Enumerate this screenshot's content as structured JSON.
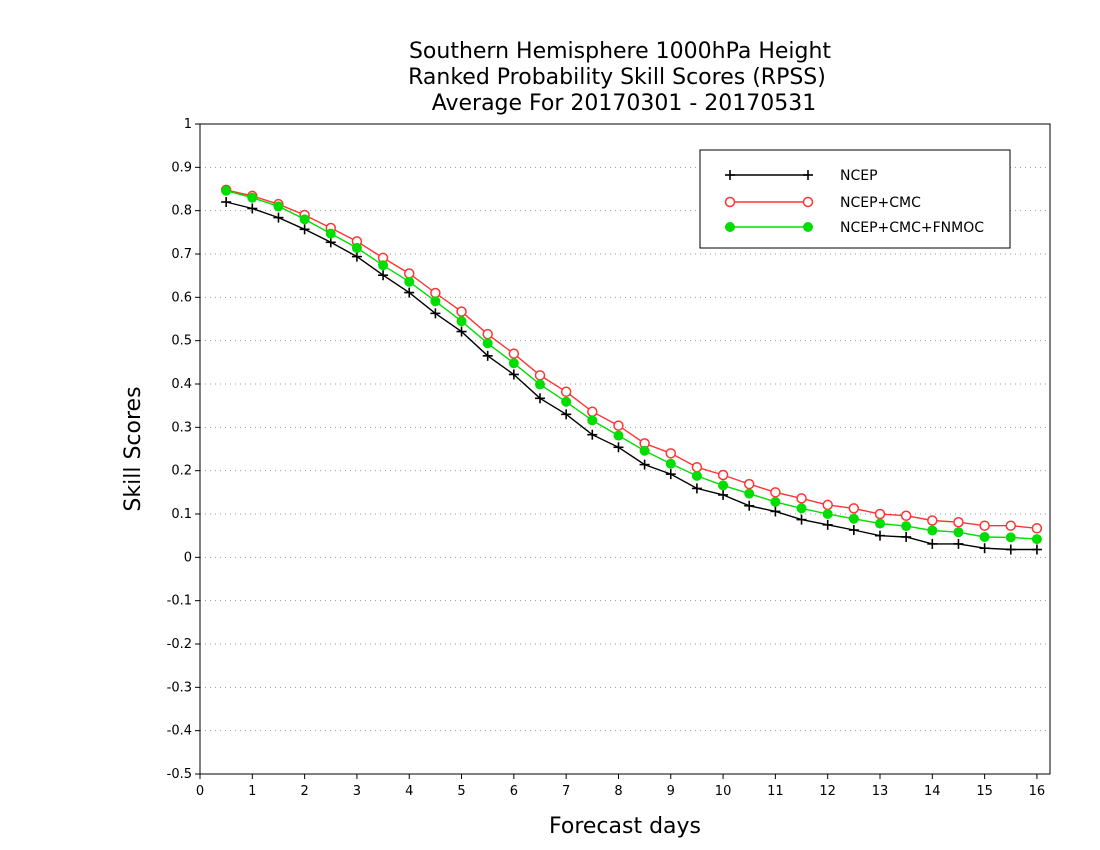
{
  "chart_data": {
    "type": "line",
    "title_lines": [
      "Southern Hemisphere 1000hPa Height",
      "Ranked Probability Skill Scores (RPSS)",
      "Average For 20170301 - 20170531"
    ],
    "xlabel": "Forecast days",
    "ylabel": "Skill Scores",
    "xlim": [
      0,
      16.25
    ],
    "ylim": [
      -0.5,
      1
    ],
    "xticks": [
      0,
      1,
      2,
      3,
      4,
      5,
      6,
      7,
      8,
      9,
      10,
      11,
      12,
      13,
      14,
      15,
      16
    ],
    "yticks": [
      -0.5,
      -0.4,
      -0.3,
      -0.2,
      -0.1,
      0,
      0.1,
      0.2,
      0.3,
      0.4,
      0.5,
      0.6,
      0.7,
      0.8,
      0.9,
      1
    ],
    "ytick_labels": [
      "-0.5",
      "-0.4",
      "-0.3",
      "-0.2",
      "-0.1",
      "0",
      "0.1",
      "0.2",
      "0.3",
      "0.4",
      "0.5",
      "0.6",
      "0.7",
      "0.8",
      "0.9",
      "1"
    ],
    "grid": "horizontal dotted",
    "legend_position": "top-right",
    "x": [
      0.5,
      1,
      1.5,
      2,
      2.5,
      3,
      3.5,
      4,
      4.5,
      5,
      5.5,
      6,
      6.5,
      7,
      7.5,
      8,
      8.5,
      9,
      9.5,
      10,
      10.5,
      11,
      11.5,
      12,
      12.5,
      13,
      13.5,
      14,
      14.5,
      15,
      15.5,
      16
    ],
    "series": [
      {
        "name": "NCEP",
        "color": "#000000",
        "marker": "plus",
        "values": [
          0.82,
          0.805,
          0.784,
          0.757,
          0.727,
          0.694,
          0.651,
          0.611,
          0.563,
          0.521,
          0.465,
          0.422,
          0.367,
          0.33,
          0.283,
          0.254,
          0.214,
          0.192,
          0.159,
          0.144,
          0.119,
          0.106,
          0.087,
          0.075,
          0.063,
          0.05,
          0.047,
          0.031,
          0.031,
          0.021,
          0.018,
          0.018
        ]
      },
      {
        "name": "NCEP+CMC",
        "color": "#ff3333",
        "marker": "open-circle",
        "values": [
          0.848,
          0.834,
          0.815,
          0.79,
          0.76,
          0.729,
          0.691,
          0.655,
          0.61,
          0.567,
          0.515,
          0.47,
          0.42,
          0.382,
          0.336,
          0.304,
          0.263,
          0.24,
          0.208,
          0.19,
          0.169,
          0.15,
          0.136,
          0.121,
          0.113,
          0.1,
          0.096,
          0.085,
          0.081,
          0.073,
          0.073,
          0.067
        ]
      },
      {
        "name": "NCEP+CMC+FNMOC",
        "color": "#00dd00",
        "marker": "filled-circle",
        "values": [
          0.846,
          0.83,
          0.81,
          0.78,
          0.747,
          0.714,
          0.674,
          0.636,
          0.591,
          0.545,
          0.494,
          0.448,
          0.399,
          0.359,
          0.316,
          0.281,
          0.246,
          0.216,
          0.188,
          0.166,
          0.147,
          0.128,
          0.113,
          0.1,
          0.089,
          0.078,
          0.072,
          0.062,
          0.058,
          0.047,
          0.046,
          0.042
        ]
      }
    ]
  }
}
